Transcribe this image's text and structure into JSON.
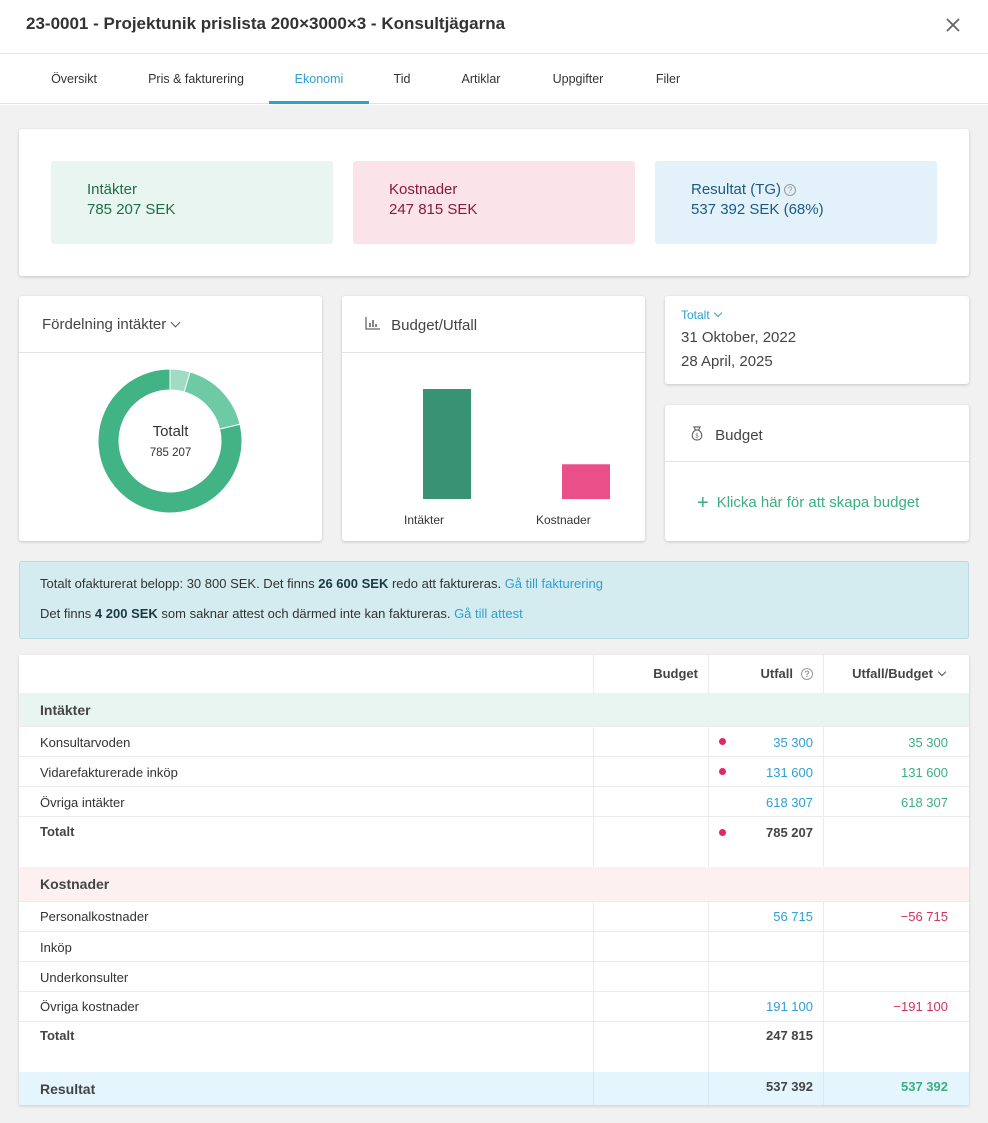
{
  "header": {
    "title": "23-0001 - Projektunik prislista 200×3000×3 - Konsultjägarna",
    "close_icon": "close-icon"
  },
  "tabs": [
    {
      "label": "Översikt",
      "active": false
    },
    {
      "label": "Pris & fakturering",
      "active": false
    },
    {
      "label": "Ekonomi",
      "active": true
    },
    {
      "label": "Tid",
      "active": false
    },
    {
      "label": "Artiklar",
      "active": false
    },
    {
      "label": "Uppgifter",
      "active": false
    },
    {
      "label": "Filer",
      "active": false
    }
  ],
  "summary": {
    "income": {
      "label": "Intäkter",
      "value": "785 207 SEK"
    },
    "costs": {
      "label": "Kostnader",
      "value": "247 815 SEK"
    },
    "result": {
      "label": "Resultat (TG)",
      "value": "537 392 SEK (68%)",
      "help_icon": "question-circle-icon"
    }
  },
  "distribution": {
    "title": "Fördelning intäkter",
    "center_label": "Totalt",
    "center_value": "785 207",
    "chart_data": {
      "type": "pie",
      "categories": [
        "Konsultarvoden",
        "Vidarefakturerade inköp",
        "Övriga intäkter"
      ],
      "values": [
        35300,
        131600,
        618307
      ],
      "colors": [
        "#9fdcc3",
        "#6dcaa4",
        "#41b385"
      ]
    }
  },
  "budget_chart": {
    "title": "Budget/Utfall",
    "icon": "bar-chart-icon",
    "chart_data": {
      "type": "bar",
      "categories": [
        "Intäkter",
        "Kostnader"
      ],
      "values": [
        785207,
        247815
      ],
      "colors": [
        "#379373",
        "#ea4f8a"
      ]
    }
  },
  "period": {
    "selector": "Totalt",
    "start": "31 Oktober, 2022",
    "end": "28 April, 2025"
  },
  "budget_card": {
    "title": "Budget",
    "icon": "money-bag-icon",
    "create_label": "Klicka här för att skapa budget"
  },
  "info": {
    "line1_prefix": "Totalt ofakturerat belopp: 30 800 SEK. Det finns ",
    "line1_bold": "26 600 SEK",
    "line1_suffix": " redo att faktureras. ",
    "line1_link": "Gå till fakturering",
    "line2_prefix": "Det finns ",
    "line2_bold": "4 200 SEK",
    "line2_suffix": " som saknar attest och därmed inte kan faktureras. ",
    "line2_link": "Gå till attest"
  },
  "table": {
    "columns": {
      "budget": "Budget",
      "outcome": "Utfall",
      "ratio": "Utfall/Budget"
    },
    "income": {
      "title": "Intäkter",
      "rows": [
        {
          "label": "Konsultarvoden",
          "outcome": "35 300",
          "ratio": "35 300"
        },
        {
          "label": "Vidarefakturerade inköp",
          "outcome": "131 600",
          "ratio": "131 600"
        },
        {
          "label": "Övriga intäkter",
          "outcome": "618 307",
          "ratio": "618 307"
        }
      ],
      "total_label": "Totalt",
      "total": "785 207"
    },
    "costs": {
      "title": "Kostnader",
      "rows": [
        {
          "label": "Personalkostnader",
          "outcome": "56 715",
          "ratio": "−56 715"
        },
        {
          "label": "Inköp",
          "outcome": "",
          "ratio": ""
        },
        {
          "label": "Underkonsulter",
          "outcome": "",
          "ratio": ""
        },
        {
          "label": "Övriga kostnader",
          "outcome": "191 100",
          "ratio": "−191 100"
        }
      ],
      "total_label": "Totalt",
      "total": "247 815"
    },
    "result": {
      "label": "Resultat",
      "outcome": "537 392",
      "ratio": "537 392"
    }
  }
}
